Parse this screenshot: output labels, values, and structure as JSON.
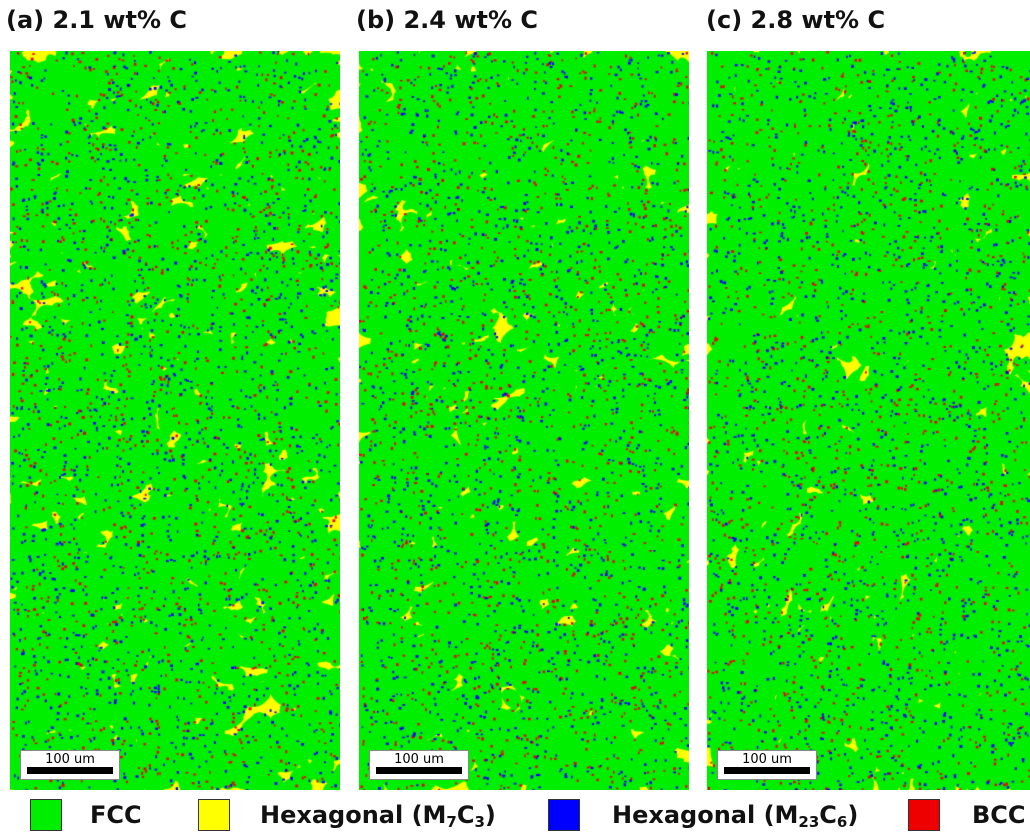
{
  "panels": [
    {
      "title": "(a) 2.1 wt% C",
      "scale_label": "100 um"
    },
    {
      "title": "(b) 2.4 wt% C",
      "scale_label": "100 um"
    },
    {
      "title": "(c) 2.8 wt% C",
      "scale_label": "100 um"
    }
  ],
  "legend": {
    "items": [
      {
        "label": "FCC",
        "color": "#00ee00"
      },
      {
        "label_html": "Hexagonal (M<sub>7</sub>C<sub>3</sub>)",
        "label": "Hexagonal (M7C3)",
        "color": "#ffff00"
      },
      {
        "label_html": "Hexagonal (M<sub>23</sub>C<sub>6</sub>)",
        "label": "Hexagonal (M23C6)",
        "color": "#0000ff"
      },
      {
        "label": "BCC",
        "color": "#ee0000"
      }
    ]
  }
}
